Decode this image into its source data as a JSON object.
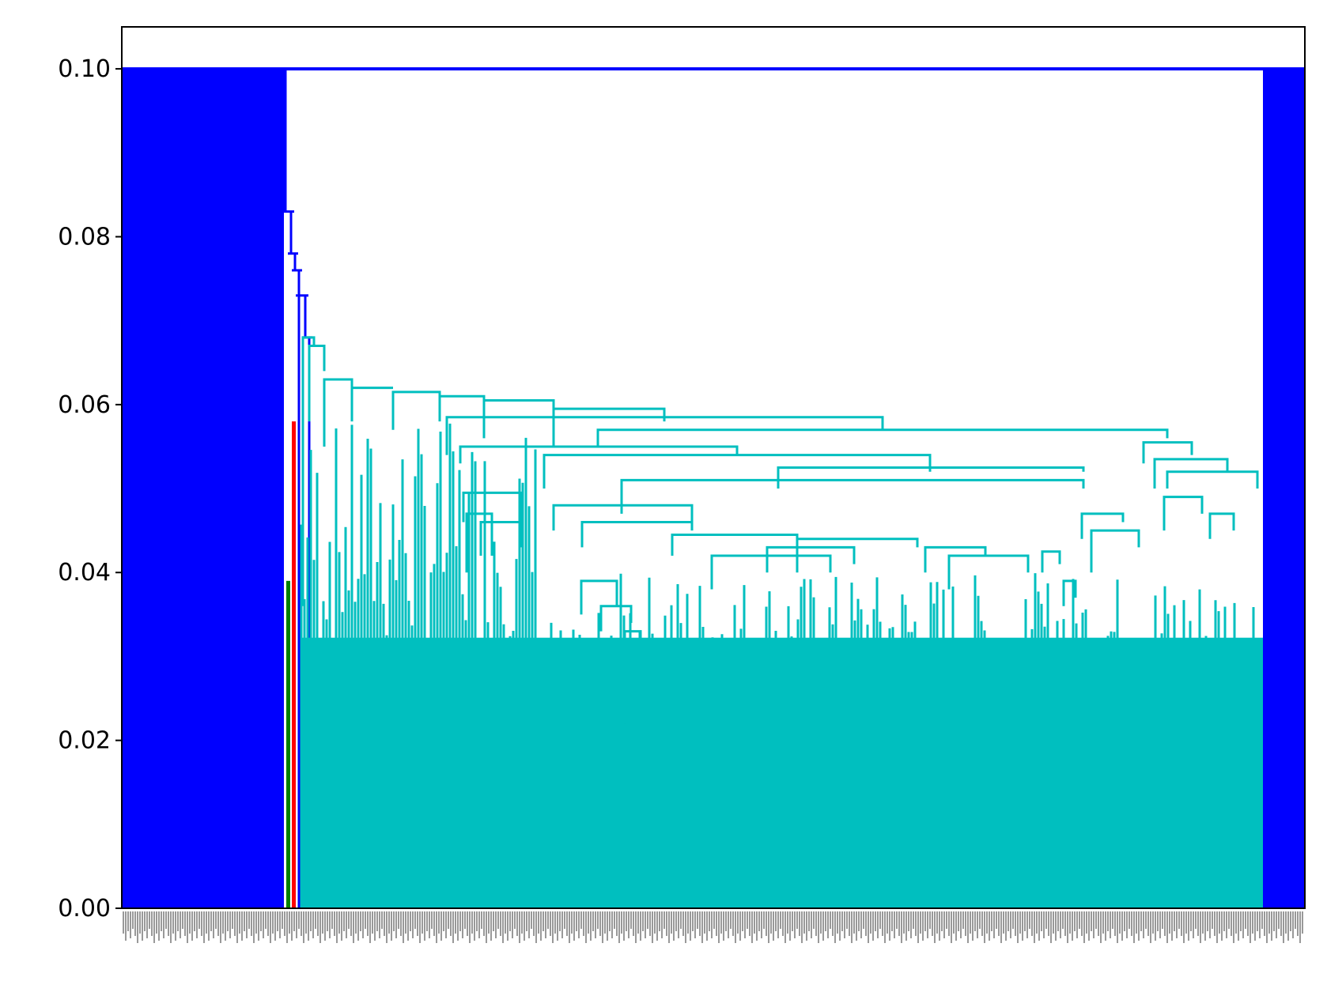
{
  "chart_data": {
    "type": "dendrogram",
    "title": "",
    "xlabel": "",
    "ylabel": "",
    "ylim": [
      0,
      0.105
    ],
    "yticks": [
      {
        "value": 0.0,
        "label": "0.00"
      },
      {
        "value": 0.02,
        "label": "0.02"
      },
      {
        "value": 0.04,
        "label": "0.04"
      },
      {
        "value": 0.06,
        "label": "0.06"
      },
      {
        "value": 0.08,
        "label": "0.08"
      },
      {
        "value": 0.1,
        "label": "0.10"
      }
    ],
    "grid": false,
    "legend": "none",
    "colors": {
      "above_threshold": "#0000ff",
      "cluster_green": "#008000",
      "cluster_red": "#ff0000",
      "cluster_cyan": "#00bfbf"
    },
    "leaf_count": 1000,
    "leaf_label_text": "",
    "links": [
      {
        "color": "#0000ff",
        "height": 0.1,
        "note": "top merge spanning all clusters"
      },
      {
        "color": "#0000ff",
        "height": 0.083
      },
      {
        "color": "#0000ff",
        "height": 0.078
      },
      {
        "color": "#0000ff",
        "height": 0.076
      },
      {
        "color": "#0000ff",
        "height": 0.073
      },
      {
        "color": "#0000ff",
        "height": 0.068
      },
      {
        "color": "#00bfbf",
        "height": 0.068
      },
      {
        "color": "#00bfbf",
        "height": 0.067
      },
      {
        "color": "#00bfbf",
        "height": 0.063
      },
      {
        "color": "#00bfbf",
        "height": 0.062
      },
      {
        "color": "#00bfbf",
        "height": 0.061
      },
      {
        "color": "#00bfbf",
        "height": 0.06
      },
      {
        "color": "#00bfbf",
        "height": 0.059
      },
      {
        "color": "#00bfbf",
        "height": 0.057
      },
      {
        "color": "#00bfbf",
        "height": 0.056
      },
      {
        "color": "#00bfbf",
        "height": 0.055
      },
      {
        "color": "#00bfbf",
        "height": 0.053
      },
      {
        "color": "#00bfbf",
        "height": 0.051
      },
      {
        "color": "#00bfbf",
        "height": 0.049
      },
      {
        "color": "#00bfbf",
        "height": 0.046
      },
      {
        "color": "#00bfbf",
        "height": 0.044
      },
      {
        "color": "#00bfbf",
        "height": 0.043
      },
      {
        "color": "#00bfbf",
        "height": 0.042
      },
      {
        "color": "#00bfbf",
        "height": 0.04
      },
      {
        "color": "#00bfbf",
        "height": 0.038
      },
      {
        "color": "#ff0000",
        "height": 0.058
      },
      {
        "color": "#008000",
        "height": 0.039
      }
    ]
  }
}
